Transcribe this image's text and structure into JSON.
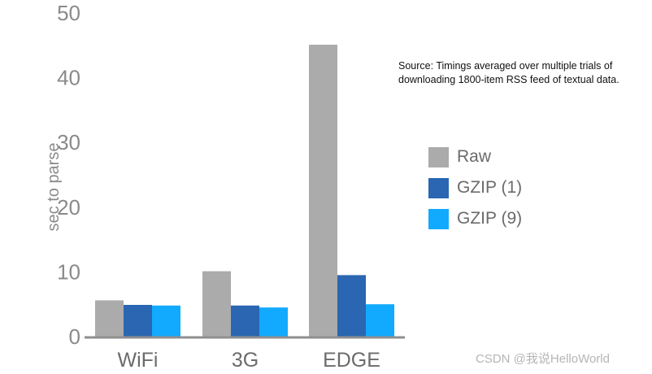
{
  "chart_data": {
    "type": "bar",
    "title": "",
    "xlabel": "",
    "ylabel": "sec to parse",
    "ylim": [
      0,
      50
    ],
    "yticks": [
      0,
      10,
      20,
      30,
      40,
      50
    ],
    "categories": [
      "WiFi",
      "3G",
      "EDGE"
    ],
    "series": [
      {
        "name": "Raw",
        "color": "#ababab",
        "values": [
          5.6,
          10.1,
          45.1
        ]
      },
      {
        "name": "GZIP (1)",
        "color": "#2a66b1",
        "values": [
          4.9,
          4.8,
          9.5
        ]
      },
      {
        "name": "GZIP (9)",
        "color": "#12aaff",
        "values": [
          4.8,
          4.5,
          5.0
        ]
      }
    ],
    "legend_position": "right",
    "grid": false,
    "annotation": [
      "Source: Timings averaged over multiple trials of",
      "downloading 1800-item RSS feed of textual data."
    ]
  },
  "watermark": "CSDN @我说HelloWorld"
}
